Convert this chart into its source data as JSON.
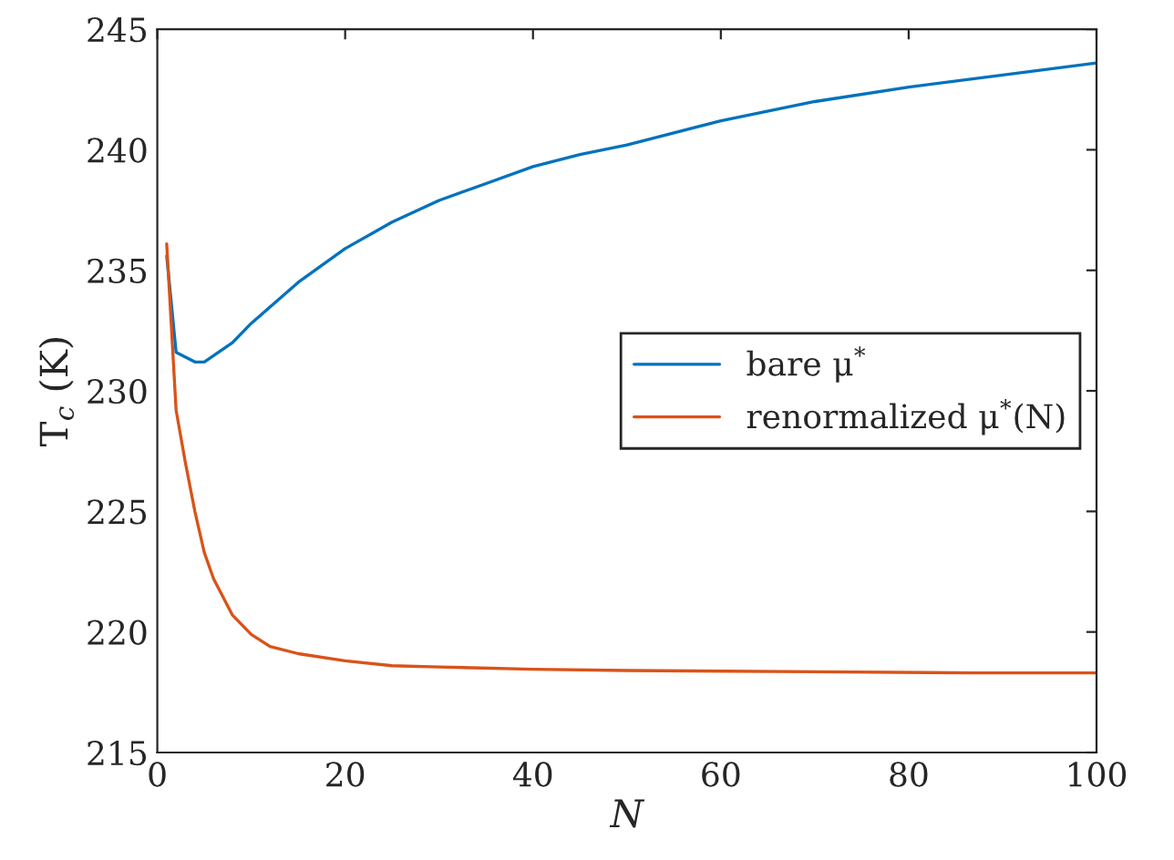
{
  "chart_data": {
    "type": "line",
    "xlabel": "N",
    "ylabel": "T$_{c}$ (K)",
    "xlim": [
      0,
      100
    ],
    "ylim": [
      215,
      245
    ],
    "xticks": [
      0,
      20,
      40,
      60,
      80,
      100
    ],
    "yticks": [
      215,
      220,
      225,
      230,
      235,
      240,
      245
    ],
    "grid": false,
    "legend": "right",
    "marker": "none",
    "line_style": "solid",
    "series": [
      {
        "name": "bare μ$^{*}$",
        "color": "#0072bd",
        "x": [
          1,
          2,
          4,
          5,
          8,
          10,
          15,
          20,
          25,
          30,
          35,
          40,
          45,
          50,
          60,
          70,
          80,
          90,
          100
        ],
        "values": [
          235.6,
          231.6,
          231.2,
          231.2,
          232.0,
          232.8,
          234.5,
          235.9,
          237.0,
          237.9,
          238.6,
          239.3,
          239.8,
          240.2,
          241.2,
          242.0,
          242.6,
          243.1,
          243.6
        ]
      },
      {
        "name": "renormalized μ$^{*}$(N)",
        "color": "#d95319",
        "x": [
          1,
          2,
          3,
          4,
          5,
          6,
          8,
          10,
          12,
          15,
          20,
          25,
          30,
          40,
          50,
          70,
          87,
          100
        ],
        "values": [
          236.1,
          229.2,
          227.0,
          225.0,
          223.3,
          222.2,
          220.7,
          219.9,
          219.4,
          219.1,
          218.8,
          218.6,
          218.55,
          218.45,
          218.4,
          218.35,
          218.3,
          218.3
        ]
      }
    ]
  }
}
